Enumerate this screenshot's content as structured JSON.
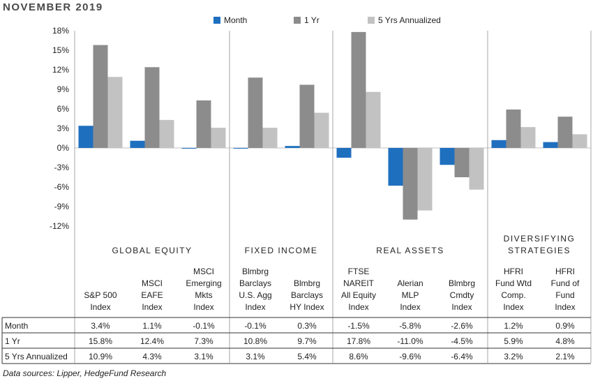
{
  "title": "NOVEMBER 2019",
  "source": "Data sources: Lipper, HedgeFund Research",
  "colors": {
    "Month": "#1f6fbf",
    "1 Yr": "#8c8c8c",
    "5 Yrs Annualized": "#c2c2c2"
  },
  "chart_data": {
    "type": "bar",
    "title": "",
    "xlabel": "",
    "ylabel": "",
    "ylim": [
      -12,
      18
    ],
    "yticks": [
      18,
      15,
      12,
      9,
      6,
      3,
      0,
      -3,
      -6,
      -9,
      -12
    ],
    "ytick_labels": [
      "18%",
      "15%",
      "12%",
      "9%",
      "6%",
      "3%",
      "0%",
      "-3%",
      "-6%",
      "-9%",
      "-12%"
    ],
    "legend": "top",
    "groups": [
      {
        "label": [
          "GLOBAL EQUITY"
        ],
        "count": 3
      },
      {
        "label": [
          "FIXED INCOME"
        ],
        "count": 2
      },
      {
        "label": [
          "REAL ASSETS"
        ],
        "count": 3
      },
      {
        "label": [
          "DIVERSIFYING",
          "STRATEGIES"
        ],
        "count": 2
      }
    ],
    "categories": [
      [
        "S&P 500",
        "Index"
      ],
      [
        "MSCI",
        "EAFE",
        "Index"
      ],
      [
        "MSCI",
        "Emerging",
        "Mkts",
        "Index"
      ],
      [
        "Blmbrg",
        "Barclays",
        "U.S. Agg",
        "Index"
      ],
      [
        "Blmbrg",
        "Barclays",
        "HY Index"
      ],
      [
        "FTSE",
        "NAREIT",
        "All Equity",
        "Index"
      ],
      [
        "Alerian",
        "MLP",
        "Index"
      ],
      [
        "Blmbrg",
        "Cmdty",
        "Index"
      ],
      [
        "HFRI",
        "Fund Wtd",
        "Comp.",
        "Index"
      ],
      [
        "HFRI",
        "Fund of",
        "Fund",
        "Index"
      ]
    ],
    "series": [
      {
        "name": "Month",
        "values": [
          3.4,
          1.1,
          -0.1,
          -0.1,
          0.3,
          -1.5,
          -5.8,
          -2.6,
          1.2,
          0.9
        ],
        "labels": [
          "3.4%",
          "1.1%",
          "-0.1%",
          "-0.1%",
          "0.3%",
          "-1.5%",
          "-5.8%",
          "-2.6%",
          "1.2%",
          "0.9%"
        ]
      },
      {
        "name": "1 Yr",
        "values": [
          15.8,
          12.4,
          7.3,
          10.8,
          9.7,
          17.8,
          -11.0,
          -4.5,
          5.9,
          4.8
        ],
        "labels": [
          "15.8%",
          "12.4%",
          "7.3%",
          "10.8%",
          "9.7%",
          "17.8%",
          "-11.0%",
          "-4.5%",
          "5.9%",
          "4.8%"
        ]
      },
      {
        "name": "5 Yrs Annualized",
        "values": [
          10.9,
          4.3,
          3.1,
          3.1,
          5.4,
          8.6,
          -9.6,
          -6.4,
          3.2,
          2.1
        ],
        "labels": [
          "10.9%",
          "4.3%",
          "3.1%",
          "3.1%",
          "5.4%",
          "8.6%",
          "-9.6%",
          "-6.4%",
          "3.2%",
          "2.1%"
        ]
      }
    ]
  }
}
